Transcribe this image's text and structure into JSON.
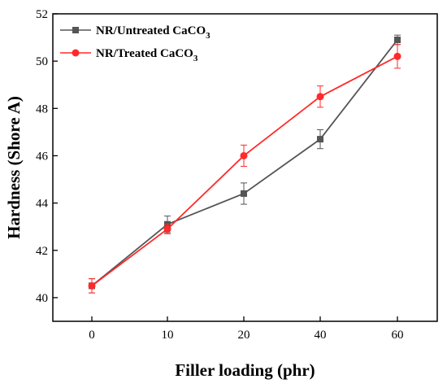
{
  "chart_data": {
    "type": "line",
    "xlabel": "Filler loading (phr)",
    "ylabel": "Hardness (Shore A)",
    "ylim": [
      39,
      52
    ],
    "yticks": [
      40,
      42,
      44,
      46,
      48,
      50,
      52
    ],
    "categories": [
      "0",
      "10",
      "20",
      "40",
      "60"
    ],
    "legend_position": "top-left",
    "grid": false,
    "series": [
      {
        "name_main": "NR/Untreated CaCO",
        "name_sub": "3",
        "color": "#555555",
        "marker": "square",
        "values": [
          40.5,
          43.1,
          44.4,
          46.7,
          50.9
        ],
        "errors": [
          0.3,
          0.35,
          0.45,
          0.4,
          0.2
        ]
      },
      {
        "name_main": "NR/Treated CaCO",
        "name_sub": "3",
        "color": "#ff2a2a",
        "marker": "circle",
        "values": [
          40.5,
          42.9,
          46.0,
          48.5,
          50.2
        ],
        "errors": [
          0.3,
          0.2,
          0.45,
          0.45,
          0.5
        ]
      }
    ]
  }
}
